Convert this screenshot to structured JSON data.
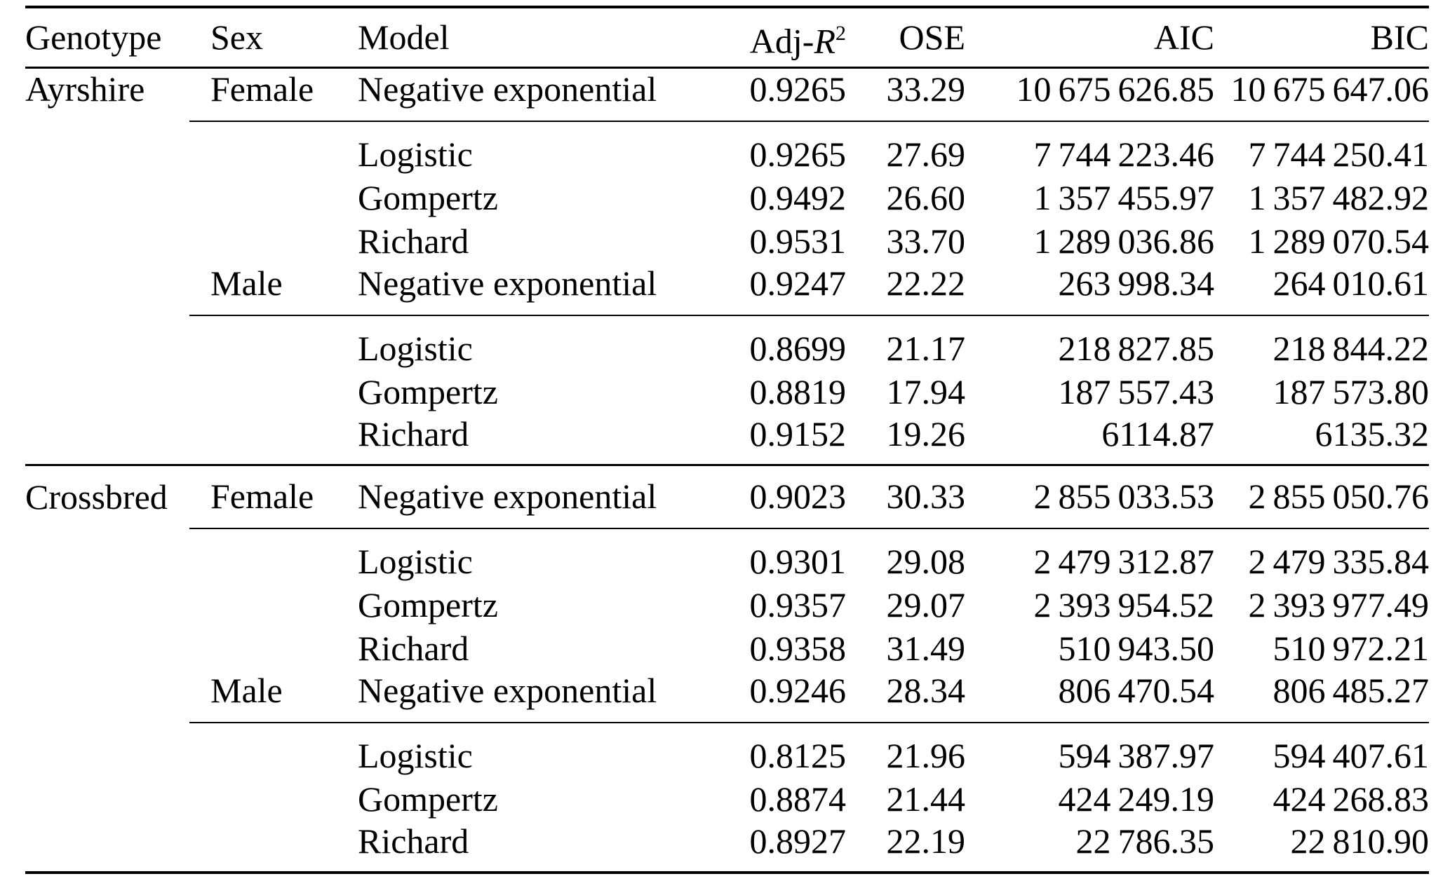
{
  "page": {
    "background_color": "#ffffff",
    "text_color": "#000000"
  },
  "table": {
    "header": {
      "genotype": "Genotype",
      "sex": "Sex",
      "model": "Model",
      "adj_r2_prefix": "Adj-",
      "adj_r2_symbol": "R",
      "adj_r2_superscript": "2",
      "ose": "OSE",
      "aic": "AIC",
      "bic": "BIC"
    },
    "rows": [
      {
        "genotype": "Ayrshire",
        "sex": "Female",
        "model": "Negative exponential",
        "adj_r2": "0.9265",
        "ose": "33.29",
        "aic": "10 675 626.85",
        "bic": "10 675 647.06"
      },
      {
        "genotype": "",
        "sex": "",
        "model": "Logistic",
        "adj_r2": "0.9265",
        "ose": "27.69",
        "aic": "7 744 223.46",
        "bic": "7 744 250.41"
      },
      {
        "genotype": "",
        "sex": "",
        "model": "Gompertz",
        "adj_r2": "0.9492",
        "ose": "26.60",
        "aic": "1 357 455.97",
        "bic": "1 357 482.92"
      },
      {
        "genotype": "",
        "sex": "",
        "model": "Richard",
        "adj_r2": "0.9531",
        "ose": "33.70",
        "aic": "1 289 036.86",
        "bic": "1 289 070.54"
      },
      {
        "genotype": "",
        "sex": "Male",
        "model": "Negative exponential",
        "adj_r2": "0.9247",
        "ose": "22.22",
        "aic": "263 998.34",
        "bic": "264 010.61"
      },
      {
        "genotype": "",
        "sex": "",
        "model": "Logistic",
        "adj_r2": "0.8699",
        "ose": "21.17",
        "aic": "218 827.85",
        "bic": "218 844.22"
      },
      {
        "genotype": "",
        "sex": "",
        "model": "Gompertz",
        "adj_r2": "0.8819",
        "ose": "17.94",
        "aic": "187 557.43",
        "bic": "187 573.80"
      },
      {
        "genotype": "",
        "sex": "",
        "model": "Richard",
        "adj_r2": "0.9152",
        "ose": "19.26",
        "aic": "6114.87",
        "bic": "6135.32"
      },
      {
        "genotype": "Crossbred",
        "sex": "Female",
        "model": "Negative exponential",
        "adj_r2": "0.9023",
        "ose": "30.33",
        "aic": "2 855 033.53",
        "bic": "2 855 050.76"
      },
      {
        "genotype": "",
        "sex": "",
        "model": "Logistic",
        "adj_r2": "0.9301",
        "ose": "29.08",
        "aic": "2 479 312.87",
        "bic": "2 479 335.84"
      },
      {
        "genotype": "",
        "sex": "",
        "model": "Gompertz",
        "adj_r2": "0.9357",
        "ose": "29.07",
        "aic": "2 393 954.52",
        "bic": "2 393 977.49"
      },
      {
        "genotype": "",
        "sex": "",
        "model": "Richard",
        "adj_r2": "0.9358",
        "ose": "31.49",
        "aic": "510 943.50",
        "bic": "510 972.21"
      },
      {
        "genotype": "",
        "sex": "Male",
        "model": "Negative exponential",
        "adj_r2": "0.9246",
        "ose": "28.34",
        "aic": "806 470.54",
        "bic": "806 485.27"
      },
      {
        "genotype": "",
        "sex": "",
        "model": "Logistic",
        "adj_r2": "0.8125",
        "ose": "21.96",
        "aic": "594 387.97",
        "bic": "594 407.61"
      },
      {
        "genotype": "",
        "sex": "",
        "model": "Gompertz",
        "adj_r2": "0.8874",
        "ose": "21.44",
        "aic": "424 249.19",
        "bic": "424 268.83"
      },
      {
        "genotype": "",
        "sex": "",
        "model": "Richard",
        "adj_r2": "0.8927",
        "ose": "22.19",
        "aic": "22 786.35",
        "bic": "22 810.90"
      }
    ]
  }
}
